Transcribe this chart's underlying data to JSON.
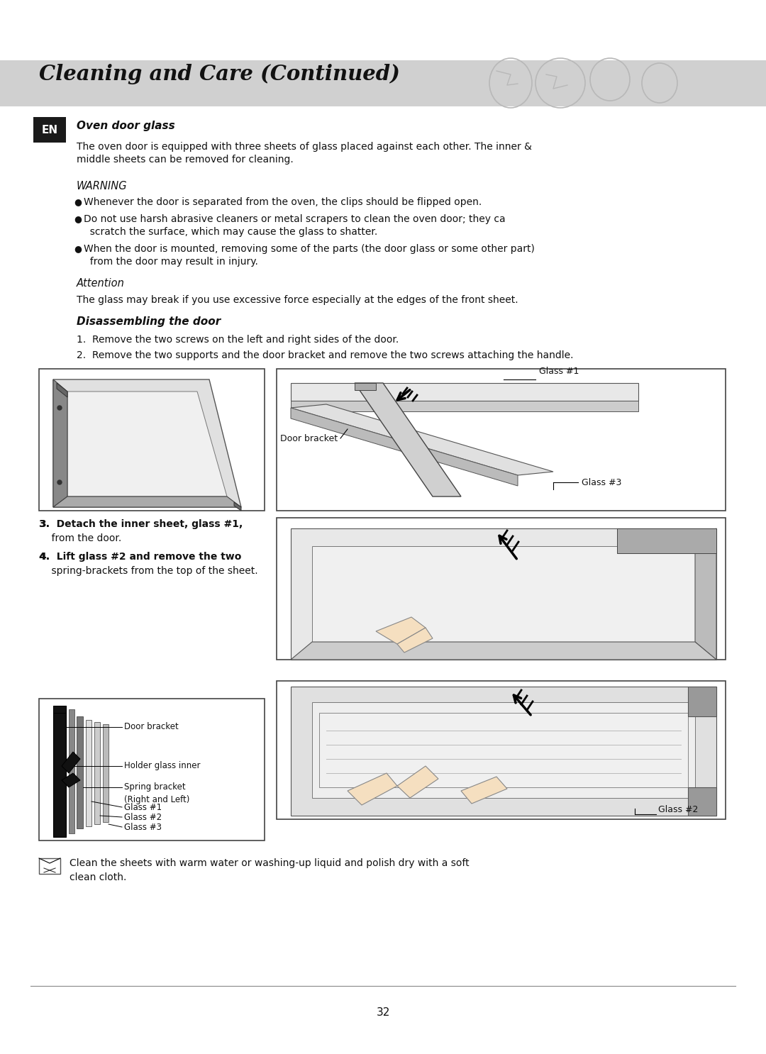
{
  "page_bg": "#ffffff",
  "header_bg": "#d0d0d0",
  "header_text": "Cleaning and Care (Continued)",
  "en_box_color": "#1a1a1a",
  "en_text": "EN",
  "section_title": "Oven door glass",
  "body_text_1a": "The oven door is equipped with three sheets of glass placed against each other. The inner &",
  "body_text_1b": "middle sheets can be removed for cleaning.",
  "warning_title": "WARNING",
  "warn1": "Whenever the door is separated from the oven, the clips should be flipped open.",
  "warn2a": "Do not use harsh abrasive cleaners or metal scrapers to clean the oven door; they ca",
  "warn2b": "  scratch the surface, which may cause the glass to shatter.",
  "warn3a": "When the door is mounted, removing some of the parts (the door glass or some other part)",
  "warn3b": "  from the door may result in injury.",
  "attention_title": "Attention",
  "attention_text": "The glass may break if you use excessive force especially at the edges of the front sheet.",
  "disassemble_title": "Disassembling the door",
  "step1": "1.  Remove the two screws on the left and right sides of the door.",
  "step2": "2.  Remove the two supports and the door bracket and remove the two screws attaching the handle.",
  "step3a": "3.  Detach the inner sheet, glass #1,",
  "step3b": "    from the door.",
  "step4a": "4.  Lift glass #2 and remove the two",
  "step4b": "    spring-brackets from the top of the sheet.",
  "label_glass1": "Glass #1",
  "label_door_bracket": "Door bracket",
  "label_glass3": "Glass #3",
  "label_glass2": "Glass #2",
  "small_labels": [
    "Door bracket",
    "Holder glass inner",
    "Spring bracket",
    "(Right and Left)",
    "Glass #1",
    "Glass #2",
    "Glass #3"
  ],
  "bottom_note1": "Clean the sheets with warm water or washing-up liquid and polish dry with a soft",
  "bottom_note2": "clean cloth.",
  "page_number": "32"
}
